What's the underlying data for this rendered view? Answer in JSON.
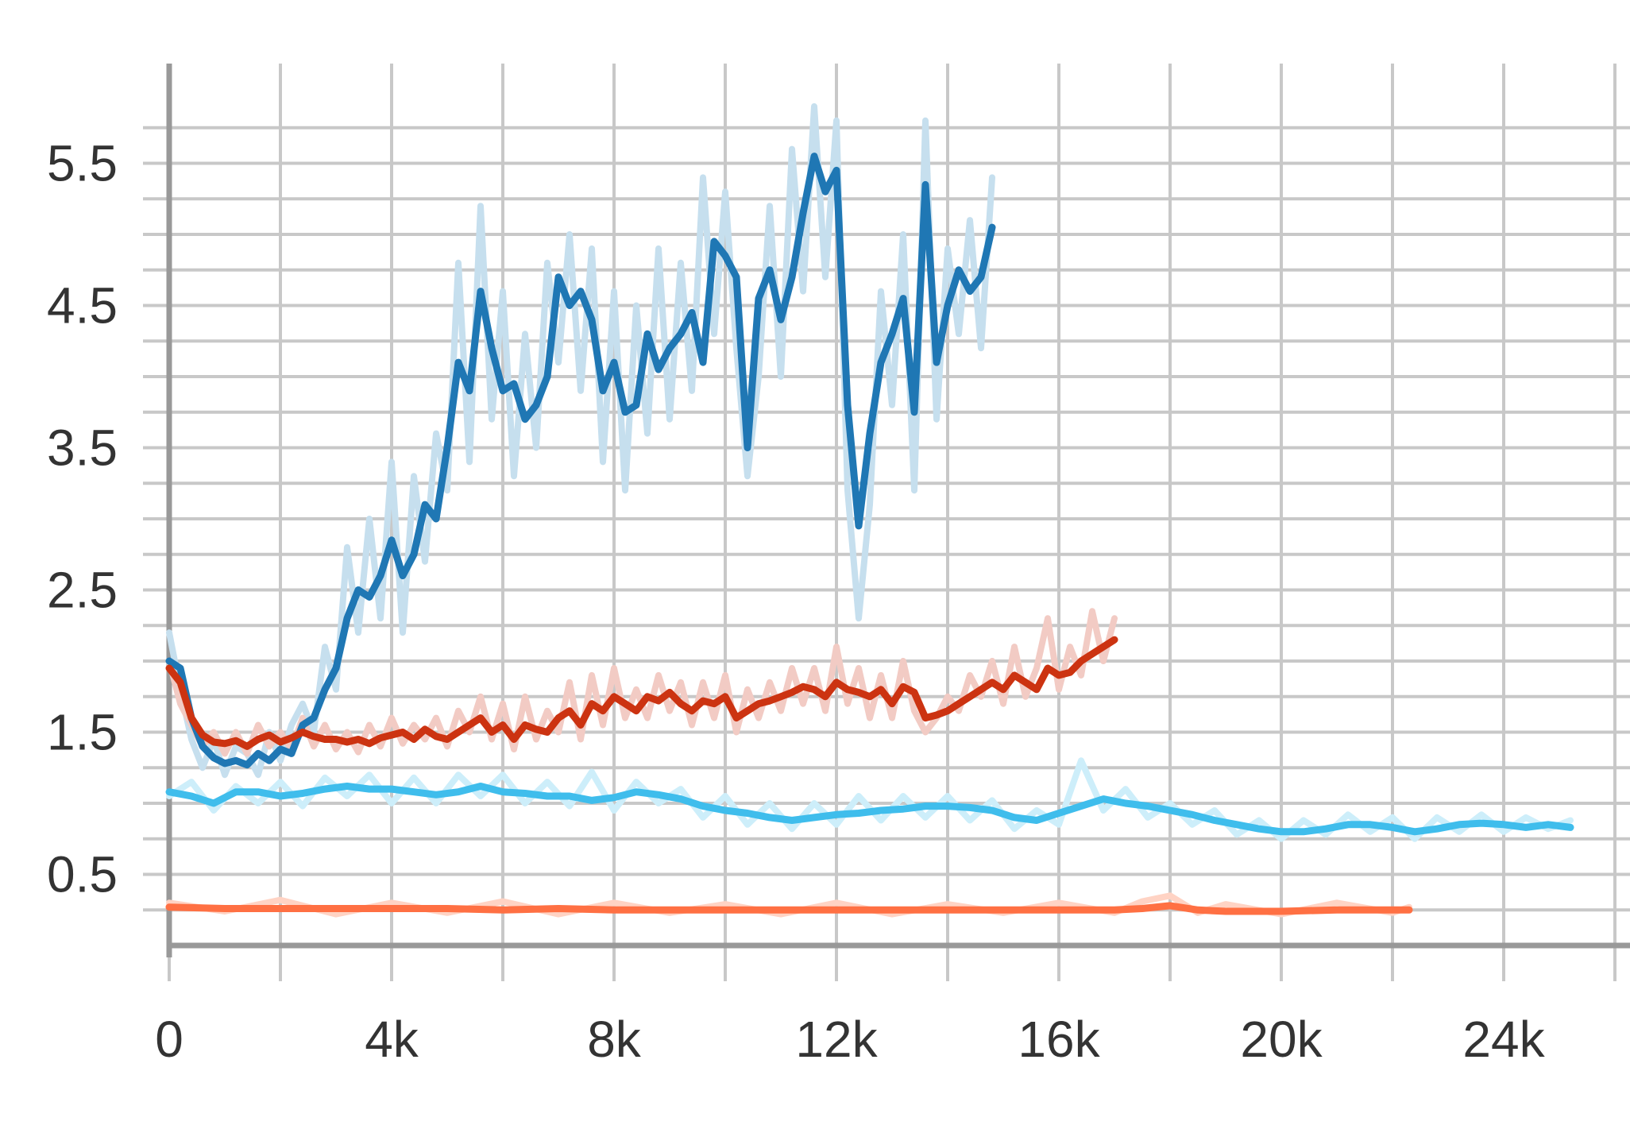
{
  "chart_data": {
    "type": "line",
    "title": "",
    "xlabel": "",
    "ylabel": "",
    "xlim": [
      -1000,
      25500
    ],
    "ylim": [
      0,
      6.1
    ],
    "x_ticks": [
      0,
      4000,
      8000,
      12000,
      16000,
      20000,
      24000
    ],
    "x_tick_labels": [
      "0",
      "4k",
      "8k",
      "12k",
      "16k",
      "20k",
      "24k"
    ],
    "y_ticks": [
      0.5,
      1.5,
      2.5,
      3.5,
      4.5,
      5.5
    ],
    "y_tick_labels": [
      "0.5",
      "1.5",
      "2.5",
      "3.5",
      "4.5",
      "5.5"
    ],
    "grid": true,
    "legend": "none",
    "series": [
      {
        "color": "#1f77b4",
        "raw_color": "#c6dfee",
        "x": [
          0,
          200,
          400,
          600,
          800,
          1000,
          1200,
          1400,
          1600,
          1800,
          2000,
          2200,
          2400,
          2600,
          2800,
          3000,
          3200,
          3400,
          3600,
          3800,
          4000,
          4200,
          4400,
          4600,
          4800,
          5000,
          5200,
          5400,
          5600,
          5800,
          6000,
          6200,
          6400,
          6600,
          6800,
          7000,
          7200,
          7400,
          7600,
          7800,
          8000,
          8200,
          8400,
          8600,
          8800,
          9000,
          9200,
          9400,
          9600,
          9800,
          10000,
          10200,
          10400,
          10600,
          10800,
          11000,
          11200,
          11400,
          11600,
          11800,
          12000,
          12200,
          12400,
          12600,
          12800,
          13000,
          13200,
          13400,
          13600,
          13800,
          14000,
          14200,
          14400,
          14600,
          14800
        ],
        "y": [
          2.0,
          1.95,
          1.6,
          1.4,
          1.32,
          1.28,
          1.3,
          1.27,
          1.35,
          1.3,
          1.38,
          1.35,
          1.55,
          1.6,
          1.8,
          1.95,
          2.3,
          2.5,
          2.45,
          2.6,
          2.85,
          2.6,
          2.75,
          3.1,
          3.0,
          3.5,
          4.1,
          3.9,
          4.6,
          4.2,
          3.9,
          3.95,
          3.7,
          3.8,
          4.0,
          4.7,
          4.5,
          4.6,
          4.4,
          3.9,
          4.1,
          3.75,
          3.8,
          4.3,
          4.05,
          4.2,
          4.3,
          4.45,
          4.1,
          4.95,
          4.85,
          4.7,
          3.5,
          4.55,
          4.75,
          4.4,
          4.7,
          5.15,
          5.55,
          5.3,
          5.45,
          3.8,
          2.95,
          3.6,
          4.1,
          4.3,
          4.55,
          3.75,
          5.35,
          4.1,
          4.5,
          4.75,
          4.6,
          4.7,
          5.05
        ],
        "raw_y": [
          2.2,
          1.8,
          1.45,
          1.25,
          1.45,
          1.2,
          1.4,
          1.35,
          1.2,
          1.5,
          1.3,
          1.55,
          1.7,
          1.5,
          2.1,
          1.8,
          2.8,
          2.2,
          3.0,
          2.3,
          3.4,
          2.2,
          3.3,
          2.7,
          3.6,
          3.2,
          4.8,
          3.4,
          5.2,
          3.7,
          4.6,
          3.3,
          4.3,
          3.5,
          4.8,
          4.1,
          5.0,
          3.9,
          4.9,
          3.4,
          4.6,
          3.2,
          4.5,
          3.6,
          4.9,
          3.7,
          4.8,
          3.9,
          5.4,
          4.3,
          5.3,
          4.2,
          3.3,
          4.0,
          5.2,
          4.0,
          5.6,
          4.6,
          5.9,
          4.7,
          5.8,
          3.2,
          2.3,
          3.1,
          4.6,
          3.8,
          5.0,
          3.2,
          5.8,
          3.7,
          4.9,
          4.3,
          5.1,
          4.2,
          5.4
        ]
      },
      {
        "color": "#cc3311",
        "raw_color": "#f2cbc4",
        "x": [
          0,
          200,
          400,
          600,
          800,
          1000,
          1200,
          1400,
          1600,
          1800,
          2000,
          2200,
          2400,
          2600,
          2800,
          3000,
          3200,
          3400,
          3600,
          3800,
          4000,
          4200,
          4400,
          4600,
          4800,
          5000,
          5200,
          5400,
          5600,
          5800,
          6000,
          6200,
          6400,
          6600,
          6800,
          7000,
          7200,
          7400,
          7600,
          7800,
          8000,
          8200,
          8400,
          8600,
          8800,
          9000,
          9200,
          9400,
          9600,
          9800,
          10000,
          10200,
          10400,
          10600,
          10800,
          11000,
          11200,
          11400,
          11600,
          11800,
          12000,
          12200,
          12400,
          12600,
          12800,
          13000,
          13200,
          13400,
          13600,
          13800,
          14000,
          14200,
          14400,
          14600,
          14800,
          15000,
          15200,
          15400,
          15600,
          15800,
          16000,
          16200,
          16400,
          16600,
          16800,
          17000
        ],
        "y": [
          1.95,
          1.85,
          1.6,
          1.48,
          1.43,
          1.42,
          1.44,
          1.4,
          1.45,
          1.48,
          1.43,
          1.46,
          1.5,
          1.47,
          1.45,
          1.45,
          1.43,
          1.45,
          1.42,
          1.46,
          1.48,
          1.5,
          1.45,
          1.52,
          1.47,
          1.45,
          1.5,
          1.55,
          1.6,
          1.5,
          1.55,
          1.45,
          1.55,
          1.52,
          1.5,
          1.6,
          1.65,
          1.55,
          1.7,
          1.65,
          1.75,
          1.7,
          1.65,
          1.75,
          1.72,
          1.78,
          1.7,
          1.65,
          1.72,
          1.7,
          1.75,
          1.6,
          1.65,
          1.7,
          1.72,
          1.75,
          1.78,
          1.82,
          1.8,
          1.75,
          1.85,
          1.8,
          1.78,
          1.75,
          1.8,
          1.7,
          1.82,
          1.78,
          1.6,
          1.62,
          1.65,
          1.7,
          1.75,
          1.8,
          1.85,
          1.8,
          1.9,
          1.85,
          1.8,
          1.95,
          1.9,
          1.92,
          2.0,
          2.05,
          2.1,
          2.15
        ],
        "raw_y": [
          2.0,
          1.7,
          1.55,
          1.4,
          1.5,
          1.35,
          1.5,
          1.35,
          1.55,
          1.4,
          1.5,
          1.38,
          1.6,
          1.4,
          1.55,
          1.38,
          1.5,
          1.36,
          1.55,
          1.4,
          1.6,
          1.42,
          1.55,
          1.45,
          1.6,
          1.4,
          1.65,
          1.5,
          1.75,
          1.45,
          1.7,
          1.38,
          1.75,
          1.45,
          1.65,
          1.5,
          1.85,
          1.45,
          1.9,
          1.55,
          1.95,
          1.6,
          1.8,
          1.6,
          1.9,
          1.65,
          1.85,
          1.55,
          1.85,
          1.6,
          1.9,
          1.5,
          1.8,
          1.6,
          1.85,
          1.65,
          1.95,
          1.7,
          1.95,
          1.65,
          2.1,
          1.7,
          1.95,
          1.6,
          1.9,
          1.6,
          2.0,
          1.65,
          1.5,
          1.6,
          1.75,
          1.65,
          1.9,
          1.75,
          2.0,
          1.7,
          2.1,
          1.75,
          1.95,
          2.3,
          1.8,
          2.1,
          1.9,
          2.35,
          2.0,
          2.3
        ]
      },
      {
        "color": "#3fbdec",
        "raw_color": "#cdeefa",
        "x": [
          0,
          400,
          800,
          1200,
          1600,
          2000,
          2400,
          2800,
          3200,
          3600,
          4000,
          4400,
          4800,
          5200,
          5600,
          6000,
          6400,
          6800,
          7200,
          7600,
          8000,
          8400,
          8800,
          9200,
          9600,
          10000,
          10400,
          10800,
          11200,
          11600,
          12000,
          12400,
          12800,
          13200,
          13600,
          14000,
          14400,
          14800,
          15200,
          15600,
          16000,
          16400,
          16800,
          17200,
          17600,
          18000,
          18400,
          18800,
          19200,
          19600,
          20000,
          20400,
          20800,
          21200,
          21600,
          22000,
          22400,
          22800,
          23200,
          23600,
          24000,
          24400,
          24800,
          25200
        ],
        "y": [
          1.08,
          1.05,
          1.0,
          1.08,
          1.08,
          1.05,
          1.07,
          1.1,
          1.12,
          1.1,
          1.1,
          1.08,
          1.06,
          1.08,
          1.12,
          1.08,
          1.07,
          1.05,
          1.05,
          1.02,
          1.04,
          1.08,
          1.06,
          1.03,
          0.98,
          0.95,
          0.93,
          0.9,
          0.88,
          0.9,
          0.92,
          0.93,
          0.95,
          0.96,
          0.98,
          0.98,
          0.97,
          0.95,
          0.9,
          0.88,
          0.93,
          0.98,
          1.03,
          1.0,
          0.98,
          0.95,
          0.92,
          0.88,
          0.85,
          0.82,
          0.8,
          0.8,
          0.82,
          0.85,
          0.85,
          0.83,
          0.8,
          0.82,
          0.85,
          0.86,
          0.85,
          0.83,
          0.85,
          0.83
        ],
        "raw_y": [
          1.05,
          1.15,
          0.95,
          1.12,
          1.0,
          1.15,
          0.98,
          1.18,
          1.05,
          1.2,
          1.0,
          1.18,
          1.0,
          1.2,
          1.05,
          1.2,
          1.0,
          1.15,
          0.98,
          1.22,
          0.95,
          1.15,
          1.0,
          1.1,
          0.9,
          1.05,
          0.85,
          1.0,
          0.82,
          1.0,
          0.85,
          1.05,
          0.88,
          1.05,
          0.9,
          1.05,
          0.88,
          1.02,
          0.82,
          0.95,
          0.85,
          1.3,
          0.95,
          1.1,
          0.9,
          1.0,
          0.85,
          0.95,
          0.78,
          0.88,
          0.75,
          0.88,
          0.78,
          0.92,
          0.8,
          0.9,
          0.75,
          0.9,
          0.8,
          0.92,
          0.8,
          0.9,
          0.82,
          0.88
        ]
      },
      {
        "color": "#ff7043",
        "raw_color": "#ffd3c4",
        "x": [
          0,
          1000,
          2000,
          3000,
          4000,
          5000,
          6000,
          7000,
          8000,
          9000,
          10000,
          11000,
          12000,
          13000,
          14000,
          15000,
          16000,
          17000,
          17500,
          18000,
          18500,
          19000,
          20000,
          21000,
          22000,
          22300
        ],
        "y": [
          0.27,
          0.26,
          0.26,
          0.26,
          0.26,
          0.26,
          0.25,
          0.26,
          0.25,
          0.25,
          0.25,
          0.25,
          0.25,
          0.25,
          0.25,
          0.25,
          0.25,
          0.25,
          0.26,
          0.28,
          0.25,
          0.24,
          0.24,
          0.25,
          0.25,
          0.25
        ],
        "raw_y": [
          0.3,
          0.24,
          0.32,
          0.22,
          0.3,
          0.23,
          0.31,
          0.22,
          0.3,
          0.23,
          0.29,
          0.22,
          0.3,
          0.22,
          0.29,
          0.23,
          0.3,
          0.23,
          0.31,
          0.35,
          0.23,
          0.29,
          0.22,
          0.3,
          0.23,
          0.27
        ]
      }
    ]
  }
}
